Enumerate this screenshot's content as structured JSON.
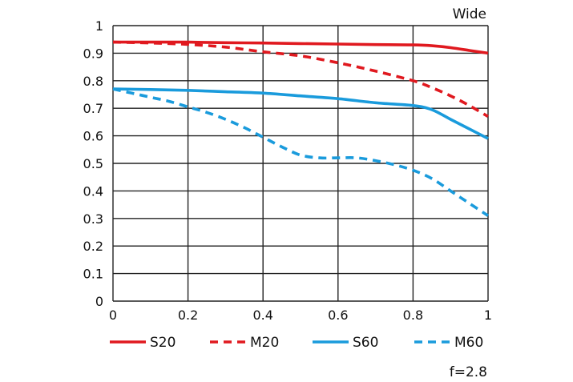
{
  "chart_data": {
    "type": "line",
    "title": "Wide",
    "xlabel": "",
    "ylabel": "",
    "xlim": [
      0,
      1
    ],
    "ylim": [
      0,
      1
    ],
    "grid": true,
    "x_ticks": [
      "0",
      "0.2",
      "0.4",
      "0.6",
      "0.8",
      "1"
    ],
    "y_ticks": [
      "0",
      "0.1",
      "0.2",
      "0.3",
      "0.4",
      "0.5",
      "0.6",
      "0.7",
      "0.8",
      "0.9",
      "1"
    ],
    "x_tick_values": [
      0,
      0.2,
      0.4,
      0.6,
      0.8,
      1
    ],
    "y_tick_values": [
      0,
      0.1,
      0.2,
      0.3,
      0.4,
      0.5,
      0.6,
      0.7,
      0.8,
      0.9,
      1
    ],
    "annotation": "f=2.8",
    "legend_position": "bottom",
    "series": [
      {
        "name": "S20",
        "color": "#e0191f",
        "style": "solid",
        "x": [
          0,
          0.1,
          0.2,
          0.3,
          0.4,
          0.5,
          0.6,
          0.7,
          0.8,
          0.85,
          0.9,
          0.95,
          1.0
        ],
        "values": [
          0.94,
          0.94,
          0.94,
          0.938,
          0.937,
          0.935,
          0.933,
          0.931,
          0.93,
          0.927,
          0.92,
          0.91,
          0.9
        ]
      },
      {
        "name": "M20",
        "color": "#e0191f",
        "style": "dashed",
        "x": [
          0,
          0.1,
          0.2,
          0.3,
          0.4,
          0.5,
          0.6,
          0.7,
          0.8,
          0.85,
          0.9,
          0.95,
          1.0
        ],
        "values": [
          0.94,
          0.937,
          0.932,
          0.922,
          0.905,
          0.89,
          0.865,
          0.835,
          0.8,
          0.775,
          0.745,
          0.71,
          0.67
        ]
      },
      {
        "name": "S60",
        "color": "#1a9bdc",
        "style": "solid",
        "x": [
          0,
          0.1,
          0.2,
          0.3,
          0.4,
          0.5,
          0.6,
          0.7,
          0.8,
          0.85,
          0.9,
          0.95,
          1.0
        ],
        "values": [
          0.77,
          0.768,
          0.765,
          0.76,
          0.755,
          0.745,
          0.735,
          0.72,
          0.71,
          0.695,
          0.66,
          0.625,
          0.59
        ]
      },
      {
        "name": "M60",
        "color": "#1a9bdc",
        "style": "dashed",
        "x": [
          0,
          0.05,
          0.1,
          0.15,
          0.2,
          0.25,
          0.3,
          0.35,
          0.4,
          0.45,
          0.5,
          0.55,
          0.6,
          0.65,
          0.7,
          0.75,
          0.8,
          0.85,
          0.9,
          0.95,
          1.0
        ],
        "values": [
          0.77,
          0.755,
          0.74,
          0.725,
          0.705,
          0.685,
          0.66,
          0.63,
          0.595,
          0.56,
          0.53,
          0.52,
          0.52,
          0.52,
          0.51,
          0.495,
          0.475,
          0.445,
          0.4,
          0.355,
          0.31
        ]
      }
    ]
  }
}
